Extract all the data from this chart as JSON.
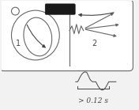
{
  "bg_color": "#f2f2f2",
  "black": "#1a1a1a",
  "dark_gray": "#444444",
  "med_gray": "#666666",
  "light_gray": "#999999",
  "label1": "1",
  "label2": "2",
  "measure_text": "> 0.12 s",
  "figsize": [
    1.76,
    1.39
  ],
  "dpi": 100
}
